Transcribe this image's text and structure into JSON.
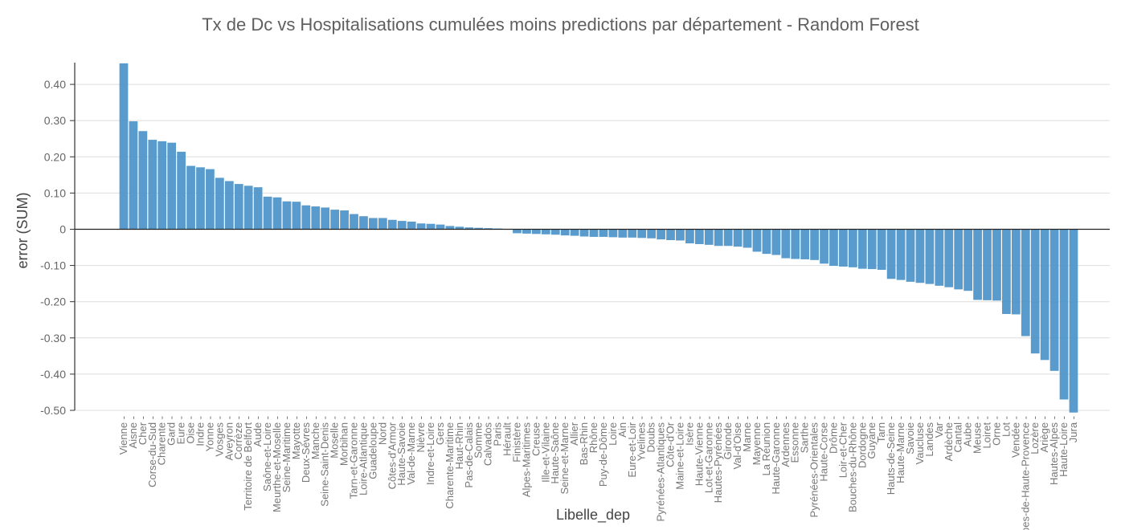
{
  "chart_data": {
    "type": "bar",
    "title": "Tx de Dc vs Hospitalisations cumulées moins predictions par département - Random Forest",
    "xlabel": "Libelle_dep",
    "ylabel": "error (SUM)",
    "ylim": [
      -0.5,
      0.46
    ],
    "yticks": [
      "0.40",
      "0.30",
      "0.20",
      "0.10",
      "0",
      "-0.10",
      "-0.20",
      "-0.30",
      "-0.40",
      "-0.50"
    ],
    "ytick_values": [
      0.4,
      0.3,
      0.2,
      0.1,
      0,
      -0.1,
      -0.2,
      -0.3,
      -0.4,
      -0.5
    ],
    "grid": true,
    "color": "#4a93c8",
    "categories": [
      "Vienne",
      "Aisne",
      "Cher",
      "Corse-du-Sud",
      "Charente",
      "Gard",
      "Eure",
      "Oise",
      "Indre",
      "Yonne",
      "Vosges",
      "Aveyron",
      "Corrèze",
      "Territoire de Belfort",
      "Aude",
      "Saône-et-Loire",
      "Meurthe-et-Moselle",
      "Seine-Maritime",
      "Mayotte",
      "Deux-Sèvres",
      "Manche",
      "Seine-Saint-Denis",
      "Moselle",
      "Morbihan",
      "Tarn-et-Garonne",
      "Loire-Atlantique",
      "Guadeloupe",
      "Nord",
      "Côtes-d'Armor",
      "Haute-Savoie",
      "Val-de-Marne",
      "Nièvre",
      "Indre-et-Loire",
      "Gers",
      "Charente-Maritime",
      "Haut-Rhin",
      "Pas-de-Calais",
      "Somme",
      "Calvados",
      "Paris",
      "Hérault",
      "Finistère",
      "Alpes-Maritimes",
      "Creuse",
      "Ille-et-Vilaine",
      "Haute-Saône",
      "Seine-et-Marne",
      "Allier",
      "Bas-Rhin",
      "Rhône",
      "Puy-de-Dôme",
      "Loire",
      "Ain",
      "Eure-et-Loir",
      "Yvelines",
      "Doubs",
      "Pyrénées-Atlantiques",
      "Côte-d'Or",
      "Maine-et-Loire",
      "Isère",
      "Haute-Vienne",
      "Lot-et-Garonne",
      "Hautes-Pyrénées",
      "Gironde",
      "Val-d'Oise",
      "Marne",
      "Mayenne",
      "La Réunion",
      "Haute-Garonne",
      "Ardennes",
      "Essonne",
      "Sarthe",
      "Pyrénées-Orientales",
      "Haute-Corse",
      "Drôme",
      "Loir-et-Cher",
      "Bouches-du-Rhône",
      "Dordogne",
      "Guyane",
      "Tarn",
      "Hauts-de-Seine",
      "Haute-Marne",
      "Savoie",
      "Vaucluse",
      "Landes",
      "Var",
      "Ardèche",
      "Cantal",
      "Aube",
      "Meuse",
      "Loiret",
      "Orne",
      "Lot",
      "Vendée",
      "Alpes-de-Haute-Provence",
      "Lozère",
      "Ariège",
      "Hautes-Alpes",
      "Haute-Loire",
      "Jura"
    ],
    "values": [
      0.458,
      0.298,
      0.271,
      0.247,
      0.243,
      0.239,
      0.214,
      0.175,
      0.171,
      0.166,
      0.142,
      0.133,
      0.125,
      0.12,
      0.116,
      0.09,
      0.088,
      0.077,
      0.076,
      0.066,
      0.063,
      0.06,
      0.054,
      0.052,
      0.042,
      0.036,
      0.031,
      0.031,
      0.026,
      0.023,
      0.021,
      0.016,
      0.015,
      0.013,
      0.009,
      0.007,
      0.005,
      0.004,
      0.003,
      0.002,
      0.001,
      -0.011,
      -0.012,
      -0.013,
      -0.014,
      -0.015,
      -0.017,
      -0.018,
      -0.02,
      -0.021,
      -0.021,
      -0.022,
      -0.023,
      -0.023,
      -0.024,
      -0.025,
      -0.028,
      -0.03,
      -0.031,
      -0.039,
      -0.041,
      -0.043,
      -0.046,
      -0.046,
      -0.048,
      -0.051,
      -0.062,
      -0.068,
      -0.071,
      -0.08,
      -0.082,
      -0.083,
      -0.085,
      -0.095,
      -0.101,
      -0.103,
      -0.105,
      -0.109,
      -0.11,
      -0.112,
      -0.137,
      -0.14,
      -0.145,
      -0.148,
      -0.151,
      -0.156,
      -0.16,
      -0.166,
      -0.17,
      -0.195,
      -0.196,
      -0.197,
      -0.234,
      -0.235,
      -0.295,
      -0.343,
      -0.361,
      -0.391,
      -0.47,
      -0.506
    ]
  }
}
